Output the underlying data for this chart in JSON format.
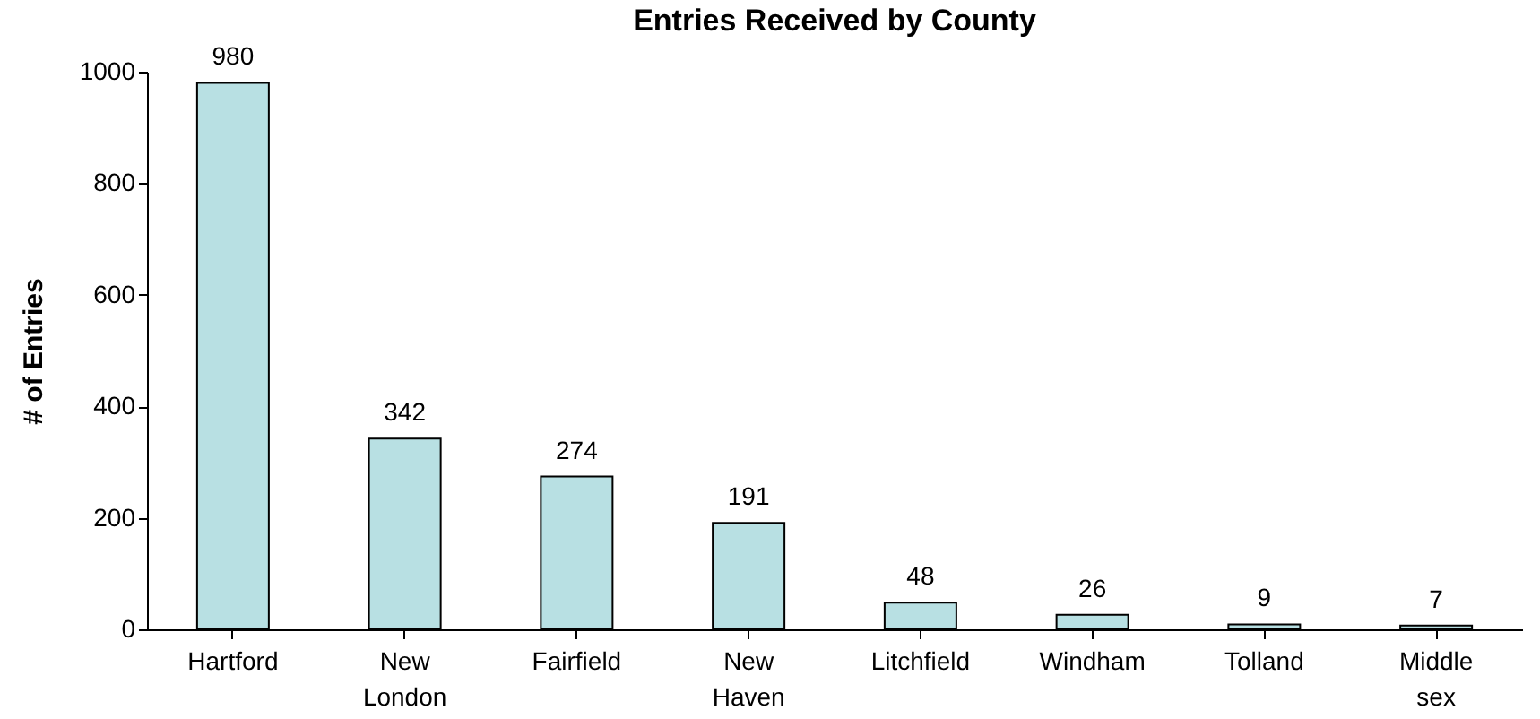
{
  "chart_data": {
    "type": "bar",
    "title": "Entries Received by County",
    "ylabel": "# of Entries",
    "categories": [
      "Hartford",
      "New London",
      "Fairfield",
      "New Haven",
      "Litchfield",
      "Windham",
      "Tolland",
      "Middle sex"
    ],
    "values": [
      980,
      342,
      274,
      191,
      48,
      26,
      9,
      7
    ],
    "color": "#b8e0e3",
    "ylim": [
      0,
      1000
    ],
    "yticks": [
      0,
      200,
      400,
      600,
      800,
      1000
    ],
    "grid": false,
    "data_labels": true
  }
}
